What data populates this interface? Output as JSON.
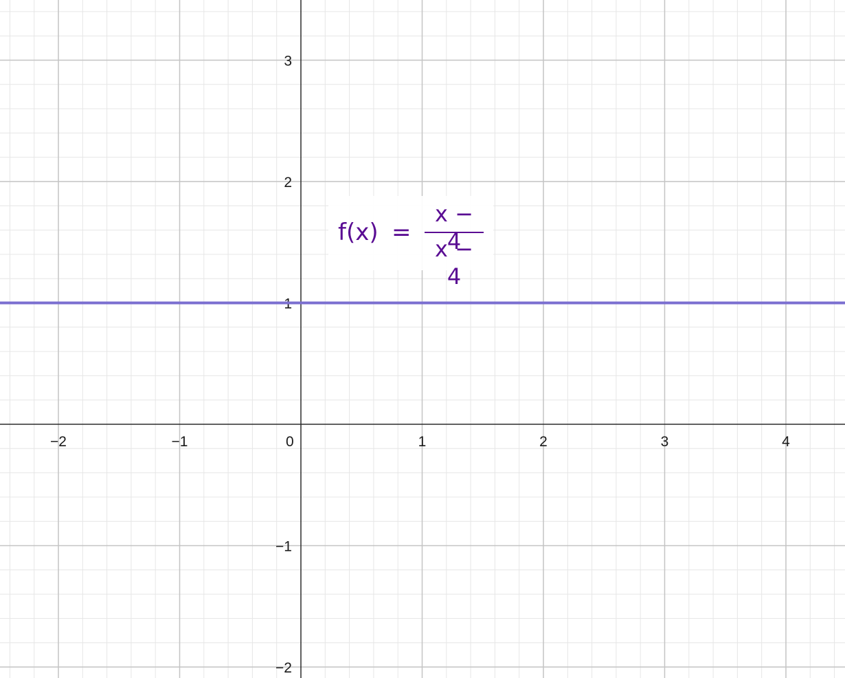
{
  "chart_data": {
    "type": "line",
    "xlim": [
      -2.5,
      4.5
    ],
    "ylim": [
      -2.1,
      3.5
    ],
    "grid": true,
    "minor_grid": true,
    "x_ticks": [
      "−2",
      "−1",
      "0",
      "1",
      "2",
      "3",
      "4"
    ],
    "y_ticks": [
      "3",
      "2",
      "1",
      "−1",
      "−2"
    ],
    "series": [
      {
        "name": "",
        "color": "#7b6fd0",
        "x": [
          -2.5,
          4.5
        ],
        "y": [
          1,
          1
        ]
      }
    ],
    "annotation": {
      "lhs": "f(x)",
      "equals": "=",
      "numerator": "x − 4",
      "denominator": "x − 4",
      "color": "#5a0d93"
    }
  }
}
